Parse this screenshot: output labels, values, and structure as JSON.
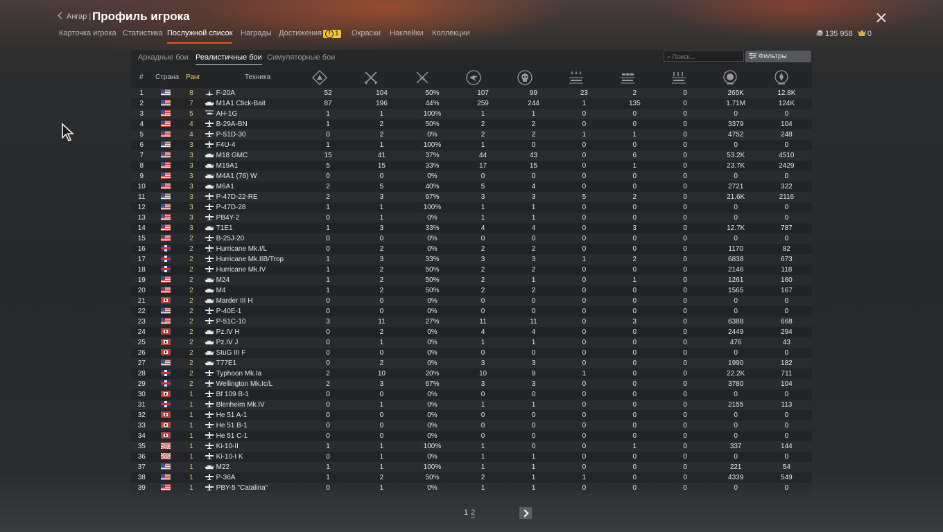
{
  "header": {
    "back_label": "Ангар",
    "title": "Профиль игрока",
    "tabs": [
      {
        "label": "Карточка игрока"
      },
      {
        "label": "Статистика"
      },
      {
        "label": "Послужной список"
      },
      {
        "label": "Награды"
      },
      {
        "label": "Достижения",
        "badge": "1"
      },
      {
        "label": "Окраски"
      },
      {
        "label": "Наклейки"
      },
      {
        "label": "Коллекции"
      }
    ],
    "silver": "135 958",
    "gold": "0"
  },
  "modes": [
    {
      "label": "Аркадные бои"
    },
    {
      "label": "Реалистичные бои"
    },
    {
      "label": "Симуляторные бои"
    }
  ],
  "search": {
    "placeholder": "Поиск..."
  },
  "filter_label": "Фильтры",
  "columns": {
    "num": "#",
    "country": "Страна",
    "rank": "Ранг",
    "vehicle": "Техника"
  },
  "stat_icons": [
    "battles-icon",
    "victories-icon",
    "win-rate-icon",
    "respawns-icon",
    "deaths-icon",
    "air-kills-icon",
    "ground-kills-icon",
    "naval-kills-icon",
    "research-icon",
    "silver-lions-icon"
  ],
  "rows": [
    [
      "1",
      "us",
      "8",
      "jet",
      "F-20A",
      "52",
      "104",
      "50%",
      "107",
      "99",
      "23",
      "2",
      "0",
      "265K",
      "12.8K"
    ],
    [
      "2",
      "us",
      "7",
      "tank",
      "M1A1 Click-Bait",
      "87",
      "196",
      "44%",
      "259",
      "244",
      "1",
      "135",
      "0",
      "1.71M",
      "124K"
    ],
    [
      "3",
      "us",
      "5",
      "heli",
      "AH-1G",
      "1",
      "1",
      "100%",
      "1",
      "1",
      "0",
      "0",
      "0",
      "0",
      "0"
    ],
    [
      "4",
      "us",
      "4",
      "plane",
      "B-29A-BN",
      "1",
      "2",
      "50%",
      "2",
      "2",
      "0",
      "0",
      "0",
      "3379",
      "104"
    ],
    [
      "5",
      "us",
      "4",
      "plane",
      "P-51D-30",
      "0",
      "2",
      "0%",
      "2",
      "2",
      "1",
      "1",
      "0",
      "4752",
      "248"
    ],
    [
      "6",
      "us",
      "3",
      "plane",
      "F4U-4",
      "1",
      "1",
      "100%",
      "1",
      "0",
      "0",
      "0",
      "0",
      "0",
      "0"
    ],
    [
      "7",
      "us",
      "3",
      "tank",
      "M18 GMC",
      "15",
      "41",
      "37%",
      "44",
      "43",
      "0",
      "6",
      "0",
      "53.2K",
      "4510"
    ],
    [
      "8",
      "us",
      "3",
      "tank",
      "M19A1",
      "5",
      "15",
      "33%",
      "17",
      "15",
      "0",
      "1",
      "0",
      "23.7K",
      "2429"
    ],
    [
      "9",
      "us",
      "3",
      "tank",
      "M4A1 (76) W",
      "0",
      "0",
      "0%",
      "0",
      "0",
      "0",
      "0",
      "0",
      "0",
      "0"
    ],
    [
      "10",
      "us",
      "3",
      "tank",
      "M6A1",
      "2",
      "5",
      "40%",
      "5",
      "4",
      "0",
      "0",
      "0",
      "2721",
      "322"
    ],
    [
      "11",
      "us",
      "3",
      "plane",
      "P-47D-22-RE",
      "2",
      "3",
      "67%",
      "3",
      "3",
      "5",
      "2",
      "0",
      "21.6K",
      "2116"
    ],
    [
      "12",
      "us",
      "3",
      "plane",
      "P-47D-28",
      "1",
      "1",
      "100%",
      "1",
      "1",
      "0",
      "0",
      "0",
      "0",
      "0"
    ],
    [
      "13",
      "us",
      "3",
      "plane",
      "PB4Y-2",
      "0",
      "1",
      "0%",
      "1",
      "1",
      "0",
      "0",
      "0",
      "0",
      "0"
    ],
    [
      "14",
      "us",
      "3",
      "tank",
      "T1E1",
      "1",
      "3",
      "33%",
      "4",
      "4",
      "0",
      "3",
      "0",
      "12.7K",
      "787"
    ],
    [
      "15",
      "us",
      "2",
      "plane",
      "B-25J-20",
      "0",
      "0",
      "0%",
      "0",
      "0",
      "0",
      "0",
      "0",
      "0",
      "0"
    ],
    [
      "16",
      "uk",
      "2",
      "plane",
      "Hurricane Mk.I/L",
      "0",
      "2",
      "0%",
      "2",
      "2",
      "0",
      "0",
      "0",
      "1170",
      "82"
    ],
    [
      "17",
      "uk",
      "2",
      "plane",
      "Hurricane Mk.IIB/Trop",
      "1",
      "3",
      "33%",
      "3",
      "3",
      "1",
      "2",
      "0",
      "6838",
      "673"
    ],
    [
      "18",
      "uk",
      "2",
      "plane",
      "Hurricane Mk.IV",
      "1",
      "2",
      "50%",
      "2",
      "2",
      "0",
      "0",
      "0",
      "2146",
      "118"
    ],
    [
      "19",
      "us",
      "2",
      "tank",
      "M24",
      "1",
      "2",
      "50%",
      "2",
      "1",
      "0",
      "1",
      "0",
      "1261",
      "160"
    ],
    [
      "20",
      "us",
      "2",
      "tank",
      "M4",
      "1",
      "2",
      "50%",
      "2",
      "2",
      "0",
      "0",
      "0",
      "1565",
      "167"
    ],
    [
      "21",
      "de",
      "2",
      "tank",
      "Marder III H",
      "0",
      "0",
      "0%",
      "0",
      "0",
      "0",
      "0",
      "0",
      "0",
      "0"
    ],
    [
      "22",
      "us",
      "2",
      "plane",
      "P-40E-1",
      "0",
      "0",
      "0%",
      "0",
      "0",
      "0",
      "0",
      "0",
      "0",
      "0"
    ],
    [
      "23",
      "us",
      "2",
      "plane",
      "P-51C-10",
      "3",
      "11",
      "27%",
      "11",
      "11",
      "0",
      "3",
      "0",
      "6388",
      "668"
    ],
    [
      "24",
      "de",
      "2",
      "tank",
      "Pz.IV H",
      "0",
      "2",
      "0%",
      "4",
      "4",
      "0",
      "0",
      "0",
      "2449",
      "294"
    ],
    [
      "25",
      "de",
      "2",
      "tank",
      "Pz.IV J",
      "0",
      "1",
      "0%",
      "1",
      "1",
      "0",
      "0",
      "0",
      "476",
      "43"
    ],
    [
      "26",
      "de",
      "2",
      "tank",
      "StuG III F",
      "0",
      "0",
      "0%",
      "0",
      "0",
      "0",
      "0",
      "0",
      "0",
      "0"
    ],
    [
      "27",
      "us",
      "2",
      "tank",
      "T77E1",
      "0",
      "2",
      "0%",
      "3",
      "3",
      "0",
      "0",
      "0",
      "1990",
      "182"
    ],
    [
      "28",
      "uk",
      "2",
      "plane",
      "Typhoon Mk.Ia",
      "2",
      "10",
      "20%",
      "10",
      "9",
      "1",
      "0",
      "0",
      "22.2K",
      "711"
    ],
    [
      "29",
      "uk",
      "2",
      "plane",
      "Wellington Mk.Ic/L",
      "2",
      "3",
      "67%",
      "3",
      "3",
      "0",
      "0",
      "0",
      "3780",
      "104"
    ],
    [
      "30",
      "de",
      "1",
      "plane",
      "Bf 109 B-1",
      "0",
      "0",
      "0%",
      "0",
      "0",
      "0",
      "0",
      "0",
      "0",
      "0"
    ],
    [
      "31",
      "uk",
      "1",
      "plane",
      "Blenheim Mk.IV",
      "0",
      "1",
      "0%",
      "1",
      "1",
      "0",
      "0",
      "0",
      "2155",
      "113"
    ],
    [
      "32",
      "de",
      "1",
      "plane",
      "He 51 A-1",
      "0",
      "0",
      "0%",
      "0",
      "0",
      "0",
      "0",
      "0",
      "0",
      "0"
    ],
    [
      "33",
      "de",
      "1",
      "plane",
      "He 51 B-1",
      "0",
      "0",
      "0%",
      "0",
      "0",
      "0",
      "0",
      "0",
      "0",
      "0"
    ],
    [
      "34",
      "de",
      "1",
      "plane",
      "He 51 C-1",
      "0",
      "0",
      "0%",
      "0",
      "0",
      "0",
      "0",
      "0",
      "0",
      "0"
    ],
    [
      "35",
      "jp",
      "1",
      "plane",
      "Ki-10-II",
      "1",
      "1",
      "100%",
      "1",
      "0",
      "0",
      "1",
      "0",
      "337",
      "144"
    ],
    [
      "36",
      "jp",
      "1",
      "plane",
      "Ki-10-I K",
      "0",
      "1",
      "0%",
      "1",
      "1",
      "0",
      "0",
      "0",
      "0",
      "0"
    ],
    [
      "37",
      "us",
      "1",
      "tank",
      "M22",
      "1",
      "1",
      "100%",
      "1",
      "1",
      "0",
      "0",
      "0",
      "221",
      "54"
    ],
    [
      "38",
      "us",
      "1",
      "plane",
      "P-36A",
      "1",
      "2",
      "50%",
      "2",
      "1",
      "1",
      "0",
      "0",
      "4339",
      "549"
    ],
    [
      "39",
      "us",
      "1",
      "plane",
      "PBY-5 \"Catalina\"",
      "0",
      "1",
      "0%",
      "1",
      "1",
      "0",
      "0",
      "0",
      "0",
      "0"
    ]
  ],
  "pagination": {
    "current": "1",
    "next": "2"
  },
  "colors": {
    "accent": "#e05a1e",
    "rank": "#e8c37a",
    "badge": "#f2c633"
  }
}
